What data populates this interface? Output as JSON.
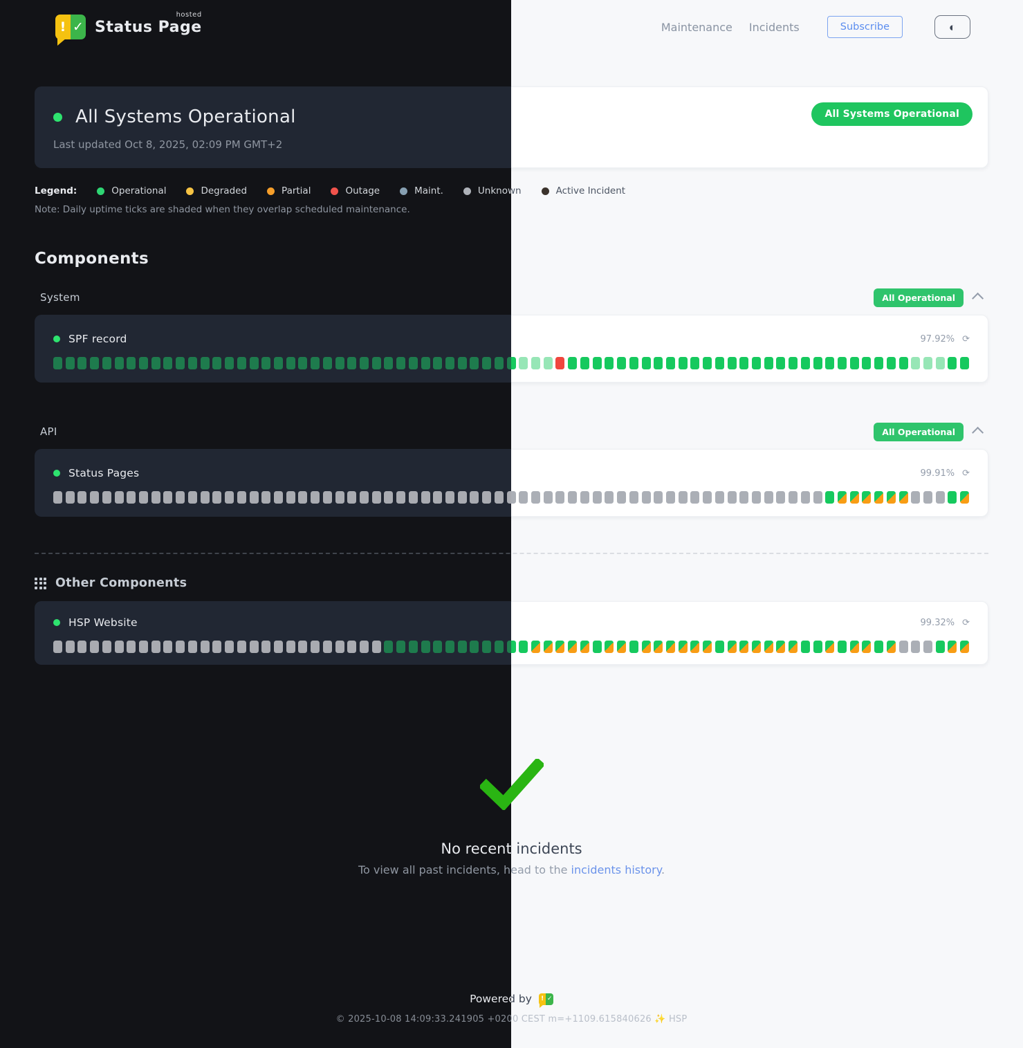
{
  "brand": {
    "name": "Status Page",
    "superscript": "hosted"
  },
  "nav": {
    "items": [
      {
        "label": "Maintenance"
      },
      {
        "label": "Incidents"
      }
    ],
    "subscribe": "Subscribe",
    "theme_toggle_icon": "◐"
  },
  "banner": {
    "title": "All Systems Operational",
    "dot_color": "#2ee36f",
    "last_updated": "Last updated Oct 8, 2025, 02:09 PM GMT+2",
    "badge": "All Systems Operational",
    "badge_color": "#1fc55f"
  },
  "legend": {
    "label": "Legend:",
    "items": [
      {
        "label": "Operational",
        "color": "#2ed573"
      },
      {
        "label": "Degraded",
        "color": "#f6c344"
      },
      {
        "label": "Partial",
        "color": "#f59e2a"
      },
      {
        "label": "Outage",
        "color": "#f1534c"
      },
      {
        "label": "Maint.",
        "color": "#87a0b2"
      },
      {
        "label": "Unknown",
        "color": "#aeb2b9"
      },
      {
        "label": "Active Incident",
        "color": "#3b332c"
      }
    ],
    "note": "Note: Daily uptime ticks are shaded when they overlap scheduled maintenance."
  },
  "components": {
    "title": "Components",
    "groups": [
      {
        "name": "System",
        "badge": "All Operational",
        "badge_color": "#2fc46c",
        "items": [
          {
            "name": "SPF record",
            "dot_color": "#2ee36f",
            "uptime": "97.92%",
            "refresh_icon": "⟳",
            "ticks": "gggggggggggggggggggggggggggggggggggggglllrgggggggggggggggggggggggggggglllgg"
          }
        ]
      },
      {
        "name": "API",
        "badge": "All Operational",
        "badge_color": "#2fc46c",
        "items": [
          {
            "name": "Status Pages",
            "dot_color": "#2ee36f",
            "uptime": "99.91%",
            "refresh_icon": "⟳",
            "ticks": "uuuuuuuuuuuuuuuuuuuuuuuuuuuuuuuuuuuuuuuuuuuuuuuuuuuuuuuuuuuuuuugmmmmmmuuugm"
          }
        ]
      }
    ],
    "other": {
      "title": "Other Components",
      "items": [
        {
          "name": "HSP Website",
          "dot_color": "#2ee36f",
          "uptime": "99.32%",
          "refresh_icon": "⟳",
          "ticks": "uuuuuuuuuuuuuuuuuuuuuuuuuuuggggggggggggmmmmmgmmgmmmmmmgmmmmmmggmgmmgmuuugmm"
        }
      ]
    }
  },
  "tick_colors_light": {
    "operational": "#16c95e",
    "maintenance_shaded": "#97e6b6",
    "outage": "#f0463e",
    "unknown": "#abafb6",
    "partial_orange": "#f89d15"
  },
  "incidents": {
    "check_color": "#2ab513",
    "title": "No recent incidents",
    "subtitle_prefix": "To view all past incidents, head to the ",
    "link": "incidents history",
    "suffix": ".",
    "link_color": "#6b93ea"
  },
  "footer": {
    "powered_by": "Powered by",
    "copyright": "© 2025-10-08 14:09:33.241905 +0200 CEST m=+1109.615840626 ✨ HSP"
  }
}
